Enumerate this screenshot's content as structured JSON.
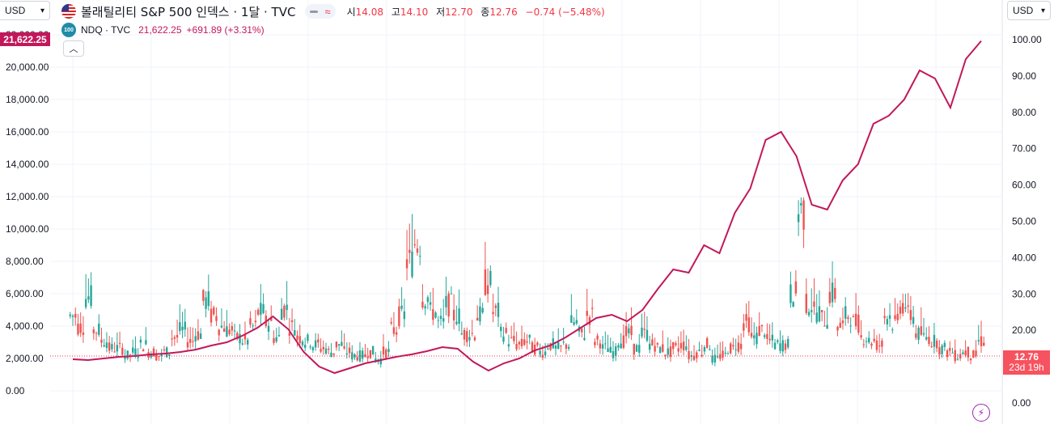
{
  "header": {
    "currency_left": "USD",
    "currency_right": "USD",
    "main_title": "볼래틸리티 S&P 500 인덱스 · 1달 · TVC",
    "toggle_symbol": "≈",
    "ohlc": [
      {
        "label": "시",
        "value": "14.08"
      },
      {
        "label": "고",
        "value": "14.10"
      },
      {
        "label": "저",
        "value": "12.70"
      },
      {
        "label": "종",
        "value": "12.76"
      }
    ],
    "change": "−0.74 (−5.48%)"
  },
  "compare": {
    "icon_text": "100",
    "title": "NDQ · TVC",
    "value": "21,622.25",
    "change": "+691.89 (+3.31%)",
    "collapse_icon": "chevron-up-icon"
  },
  "left_axis": {
    "labels": [
      "22,000.00",
      "20,000.00",
      "18,000.00",
      "16,000.00",
      "14,000.00",
      "12,000.00",
      "10,000.00",
      "8,000.00",
      "6,000.00",
      "4,000.00",
      "2,000.00",
      "0.00"
    ],
    "current_tag": "21,622.25"
  },
  "right_axis": {
    "labels": [
      "100.00",
      "90.00",
      "80.00",
      "70.00",
      "60.00",
      "50.00",
      "40.00",
      "30.00",
      "20.00",
      "0.00"
    ],
    "current_tag": "12.76",
    "countdown": "23d 19h"
  },
  "colors": {
    "up": "#26a69a",
    "down": "#ef5350",
    "compare_line": "#c2185b",
    "grid": "#f0f3fa",
    "price_line": "#f23645"
  },
  "chart_data": [
    {
      "type": "candlestick",
      "title": "볼래틸리티 S&P 500 인덱스",
      "timeframe": "1달",
      "source": "TVC",
      "axis": "right",
      "ylim": [
        0,
        100
      ],
      "last": {
        "open": 14.08,
        "high": 14.1,
        "low": 12.7,
        "close": 12.76
      },
      "approx_series": [
        24,
        21,
        29,
        20,
        17,
        15,
        15,
        13,
        14,
        16,
        14,
        13,
        14,
        18,
        20,
        17,
        19,
        28,
        24,
        21,
        20,
        18,
        17,
        21,
        25,
        22,
        18,
        26,
        21,
        18,
        17,
        16,
        15,
        14,
        16,
        14,
        13,
        13,
        14,
        12,
        14,
        20,
        24,
        39,
        44,
        29,
        25,
        22,
        27,
        24,
        19,
        19,
        24,
        33,
        25,
        19,
        17,
        16,
        17,
        15,
        14,
        16,
        15,
        16,
        22,
        19,
        24,
        17,
        15,
        14,
        17,
        19,
        15,
        19,
        16,
        15,
        14,
        15,
        16,
        13,
        14,
        16,
        12,
        13,
        15,
        16,
        22,
        18,
        20,
        17,
        16,
        16,
        30,
        53,
        27,
        25,
        23,
        30,
        21,
        24,
        22,
        18,
        17,
        16,
        24,
        22,
        27,
        24,
        19,
        18,
        17,
        15,
        14,
        13,
        14,
        13,
        17
      ]
    },
    {
      "type": "line",
      "title": "NDQ",
      "source": "TVC",
      "axis": "left",
      "ylim": [
        0,
        22000
      ],
      "last": 21622.25,
      "approx_series": [
        1950,
        1900,
        2000,
        2100,
        2150,
        2250,
        2300,
        2400,
        2550,
        2800,
        3000,
        3400,
        3900,
        4600,
        3800,
        2400,
        1500,
        1100,
        1400,
        1700,
        1900,
        2100,
        2250,
        2450,
        2700,
        2600,
        1800,
        1250,
        1700,
        2000,
        2500,
        2800,
        3300,
        3900,
        4500,
        4700,
        4300,
        5000,
        6300,
        7500,
        7300,
        9000,
        8500,
        11000,
        12500,
        15500,
        16000,
        14500,
        11500,
        11200,
        13000,
        14000,
        16500,
        17000,
        18000,
        19800,
        19300,
        17500,
        20500,
        21622
      ]
    }
  ]
}
